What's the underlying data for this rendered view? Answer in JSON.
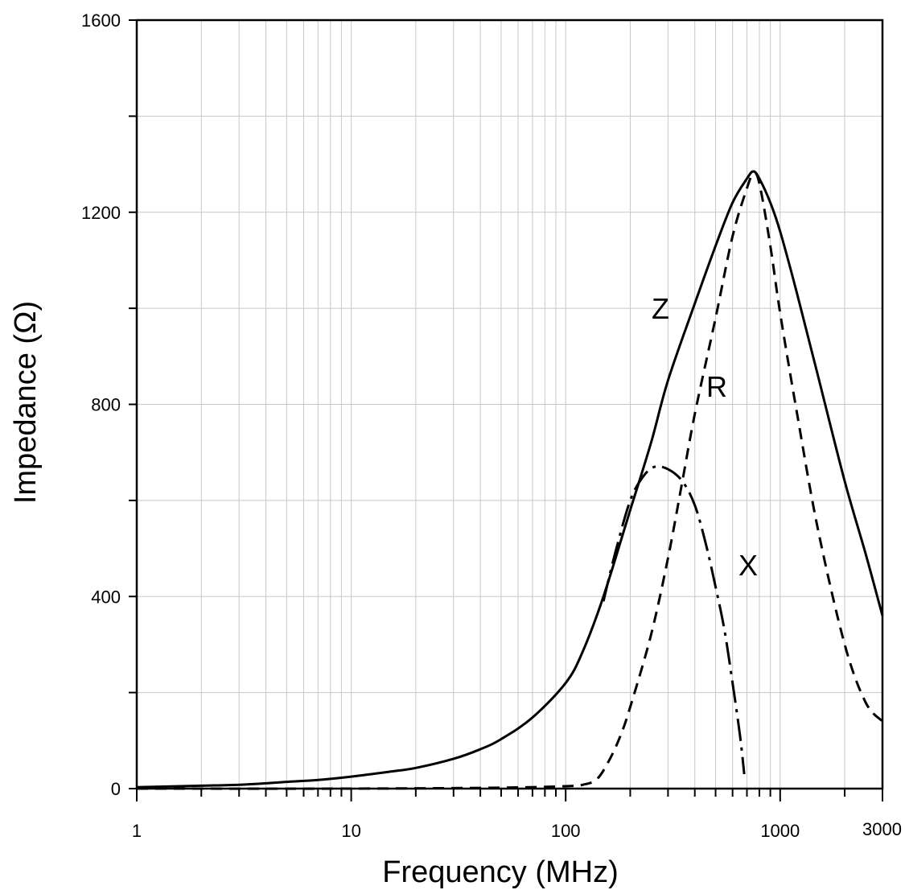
{
  "chart_data": {
    "type": "line",
    "title": "",
    "xlabel": "Frequency (MHz)",
    "ylabel": "Impedance (Ω)",
    "x_scale": "log",
    "xlim": [
      1,
      3000
    ],
    "ylim": [
      0,
      1600
    ],
    "grid": true,
    "x_tick_labels": [
      "1",
      "10",
      "100",
      "1000",
      "3000"
    ],
    "y_tick_labels": [
      "0",
      "400",
      "800",
      "1200",
      "1600"
    ],
    "series": [
      {
        "name": "Z",
        "style": "solid",
        "points": [
          [
            1,
            3
          ],
          [
            2,
            6
          ],
          [
            3,
            8
          ],
          [
            4,
            11
          ],
          [
            5,
            14
          ],
          [
            7,
            18
          ],
          [
            10,
            25
          ],
          [
            15,
            35
          ],
          [
            20,
            43
          ],
          [
            30,
            62
          ],
          [
            40,
            82
          ],
          [
            50,
            103
          ],
          [
            70,
            148
          ],
          [
            100,
            220
          ],
          [
            120,
            285
          ],
          [
            150,
            400
          ],
          [
            200,
            580
          ],
          [
            250,
            720
          ],
          [
            300,
            850
          ],
          [
            400,
            1010
          ],
          [
            500,
            1130
          ],
          [
            600,
            1220
          ],
          [
            700,
            1270
          ],
          [
            750,
            1285
          ],
          [
            800,
            1270
          ],
          [
            900,
            1220
          ],
          [
            1000,
            1160
          ],
          [
            1200,
            1030
          ],
          [
            1500,
            860
          ],
          [
            2000,
            640
          ],
          [
            2500,
            490
          ],
          [
            3000,
            360
          ]
        ]
      },
      {
        "name": "R",
        "style": "dashed",
        "points": [
          [
            1,
            0
          ],
          [
            10,
            0
          ],
          [
            50,
            2
          ],
          [
            100,
            5
          ],
          [
            120,
            8
          ],
          [
            140,
            20
          ],
          [
            160,
            60
          ],
          [
            180,
            110
          ],
          [
            200,
            170
          ],
          [
            250,
            320
          ],
          [
            300,
            480
          ],
          [
            350,
            640
          ],
          [
            400,
            780
          ],
          [
            500,
            980
          ],
          [
            600,
            1150
          ],
          [
            700,
            1250
          ],
          [
            750,
            1280
          ],
          [
            800,
            1260
          ],
          [
            900,
            1130
          ],
          [
            1000,
            990
          ],
          [
            1200,
            780
          ],
          [
            1500,
            540
          ],
          [
            2000,
            300
          ],
          [
            2500,
            180
          ],
          [
            3000,
            140
          ]
        ]
      },
      {
        "name": "X",
        "style": "dash-dot",
        "points": [
          [
            150,
            390
          ],
          [
            170,
            490
          ],
          [
            200,
            600
          ],
          [
            230,
            650
          ],
          [
            260,
            670
          ],
          [
            300,
            665
          ],
          [
            350,
            640
          ],
          [
            400,
            590
          ],
          [
            450,
            510
          ],
          [
            500,
            420
          ],
          [
            550,
            330
          ],
          [
            600,
            220
          ],
          [
            650,
            110
          ],
          [
            680,
            30
          ]
        ]
      }
    ]
  }
}
